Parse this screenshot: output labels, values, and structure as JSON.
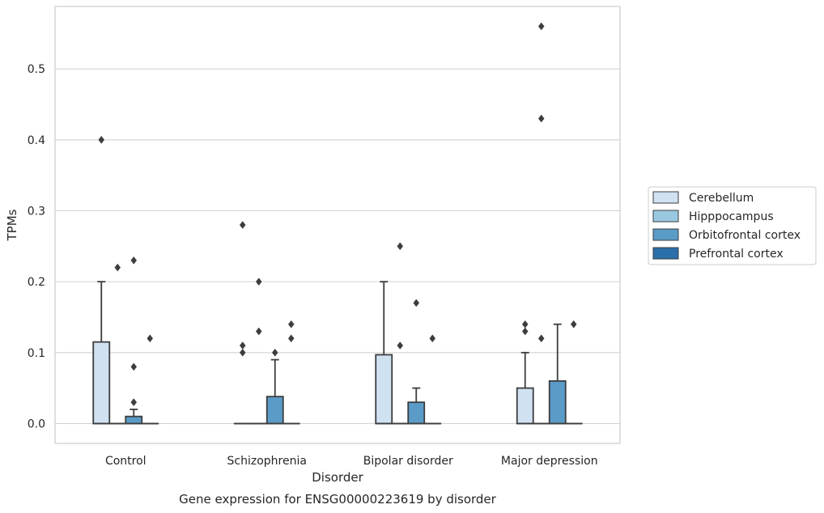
{
  "chart_data": {
    "type": "box",
    "caption": "Gene expression for ENSG00000223619 by disorder",
    "xlabel": "Disorder",
    "ylabel": "TPMs",
    "ylim": [
      -0.028,
      0.588
    ],
    "yticks": [
      "0.0",
      "0.1",
      "0.2",
      "0.3",
      "0.4",
      "0.5"
    ],
    "yticks_values": [
      0,
      0.1,
      0.2,
      0.3,
      0.4,
      0.5
    ],
    "grid": "horizontal",
    "legend_position": "right",
    "categories": [
      "Control",
      "Schizophrenia",
      "Bipolar disorder",
      "Major depression"
    ],
    "series": [
      {
        "name": "Cerebellum",
        "color": "#d0e1f2",
        "boxes": [
          {
            "q1": 0,
            "median": 0,
            "q3": 0.115,
            "whisker_low": 0,
            "whisker_high": 0.2,
            "outliers": [
              0.4
            ]
          },
          {
            "q1": 0,
            "median": 0,
            "q3": 0,
            "whisker_low": 0,
            "whisker_high": 0,
            "outliers": [
              0.28,
              0.11,
              0.1
            ]
          },
          {
            "q1": 0,
            "median": 0,
            "q3": 0.097,
            "whisker_low": 0,
            "whisker_high": 0.2,
            "outliers": []
          },
          {
            "q1": 0,
            "median": 0,
            "q3": 0.05,
            "whisker_low": 0,
            "whisker_high": 0.1,
            "outliers": [
              0.14,
              0.13
            ]
          }
        ]
      },
      {
        "name": "Hipppocampus",
        "color": "#9ac8e0",
        "boxes": [
          {
            "q1": 0,
            "median": 0,
            "q3": 0,
            "whisker_low": 0,
            "whisker_high": 0,
            "outliers": [
              0.22
            ]
          },
          {
            "q1": 0,
            "median": 0,
            "q3": 0,
            "whisker_low": 0,
            "whisker_high": 0,
            "outliers": [
              0.2,
              0.13
            ]
          },
          {
            "q1": 0,
            "median": 0,
            "q3": 0,
            "whisker_low": 0,
            "whisker_high": 0,
            "outliers": [
              0.25,
              0.11
            ]
          },
          {
            "q1": 0,
            "median": 0,
            "q3": 0,
            "whisker_low": 0,
            "whisker_high": 0,
            "outliers": [
              0.43,
              0.56,
              0.12
            ]
          }
        ]
      },
      {
        "name": "Orbitofrontal cortex",
        "color": "#5a9bc8",
        "boxes": [
          {
            "q1": 0,
            "median": 0,
            "q3": 0.01,
            "whisker_low": 0,
            "whisker_high": 0.02,
            "outliers": [
              0.23,
              0.08,
              0.03
            ]
          },
          {
            "q1": 0,
            "median": 0,
            "q3": 0.038,
            "whisker_low": 0,
            "whisker_high": 0.09,
            "outliers": [
              0.1
            ]
          },
          {
            "q1": 0,
            "median": 0,
            "q3": 0.03,
            "whisker_low": 0,
            "whisker_high": 0.05,
            "outliers": [
              0.17
            ]
          },
          {
            "q1": 0,
            "median": 0,
            "q3": 0.06,
            "whisker_low": 0,
            "whisker_high": 0.14,
            "outliers": []
          }
        ]
      },
      {
        "name": "Prefrontal cortex",
        "color": "#2a6eaa",
        "boxes": [
          {
            "q1": 0,
            "median": 0,
            "q3": 0,
            "whisker_low": 0,
            "whisker_high": 0,
            "outliers": [
              0.12
            ]
          },
          {
            "q1": 0,
            "median": 0,
            "q3": 0,
            "whisker_low": 0,
            "whisker_high": 0,
            "outliers": [
              0.14,
              0.12
            ]
          },
          {
            "q1": 0,
            "median": 0,
            "q3": 0,
            "whisker_low": 0,
            "whisker_high": 0,
            "outliers": [
              0.12
            ]
          },
          {
            "q1": 0,
            "median": 0,
            "q3": 0,
            "whisker_low": 0,
            "whisker_high": 0,
            "outliers": [
              0.14
            ]
          }
        ]
      }
    ]
  }
}
